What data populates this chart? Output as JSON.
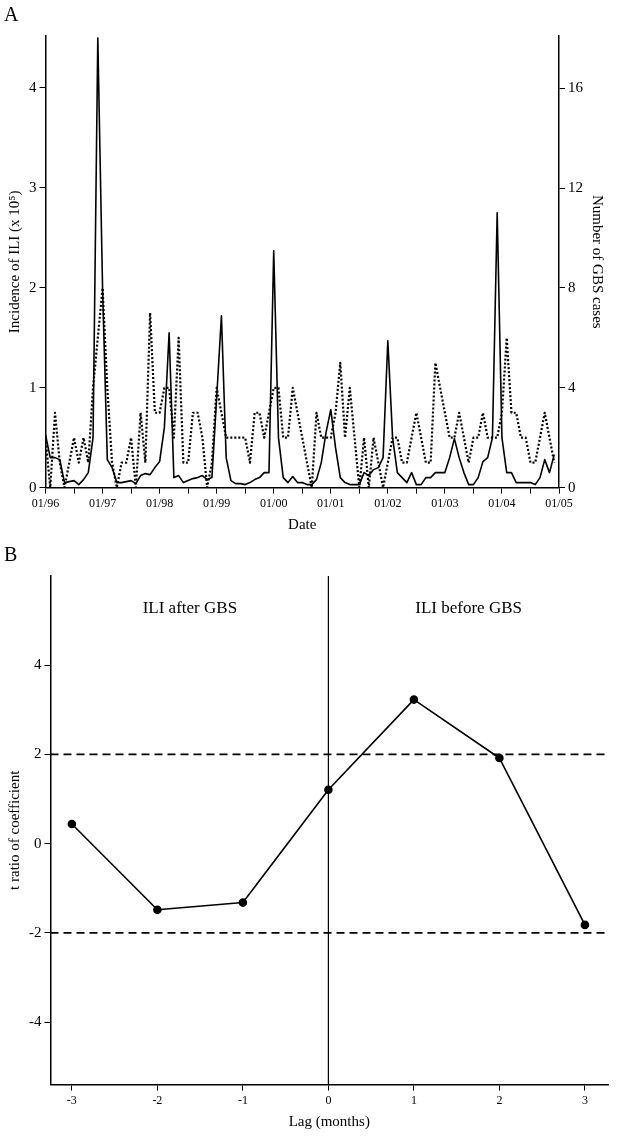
{
  "chart_data": [
    {
      "type": "line",
      "title": "A",
      "xlabel": "Date",
      "ylabel": "Incidence of ILI (x 10⁵)",
      "y2label": "Number of GBS cases",
      "x": [
        "1996-01",
        "1996-02",
        "1996-03",
        "1996-04",
        "1996-05",
        "1996-06",
        "1996-07",
        "1996-08",
        "1996-09",
        "1996-10",
        "1996-11",
        "1996-12",
        "1997-01",
        "1997-02",
        "1997-03",
        "1997-04",
        "1997-05",
        "1997-06",
        "1997-07",
        "1997-08",
        "1997-09",
        "1997-10",
        "1997-11",
        "1997-12",
        "1998-01",
        "1998-02",
        "1998-03",
        "1998-04",
        "1998-05",
        "1998-06",
        "1998-07",
        "1998-08",
        "1998-09",
        "1998-10",
        "1998-11",
        "1998-12",
        "1999-01",
        "1999-02",
        "1999-03",
        "1999-04",
        "1999-05",
        "1999-06",
        "1999-07",
        "1999-08",
        "1999-09",
        "1999-10",
        "1999-11",
        "1999-12",
        "2000-01",
        "2000-02",
        "2000-03",
        "2000-04",
        "2000-05",
        "2000-06",
        "2000-07",
        "2000-08",
        "2000-09",
        "2000-10",
        "2000-11",
        "2000-12",
        "2001-01",
        "2001-02",
        "2001-03",
        "2001-04",
        "2001-05",
        "2001-06",
        "2001-07",
        "2001-08",
        "2001-09",
        "2001-10",
        "2001-11",
        "2001-12",
        "2002-01",
        "2002-02",
        "2002-03",
        "2002-04",
        "2002-05",
        "2002-06",
        "2002-07",
        "2002-08",
        "2002-09",
        "2002-10",
        "2002-11",
        "2002-12",
        "2003-01",
        "2003-02",
        "2003-03",
        "2003-04",
        "2003-05",
        "2003-06",
        "2003-07",
        "2003-08",
        "2003-09",
        "2003-10",
        "2003-11",
        "2003-12",
        "2004-01",
        "2004-02",
        "2004-03",
        "2004-04",
        "2004-05",
        "2004-06",
        "2004-07",
        "2004-08",
        "2004-09",
        "2004-10",
        "2004-11",
        "2004-12"
      ],
      "series": [
        {
          "color": "#000000",
          "line_style": "solid",
          "values": [
            0.53,
            0.3,
            0.3,
            0.28,
            0.05,
            0.06,
            0.07,
            0.03,
            0.08,
            0.15,
            0.5,
            4.5,
            2.0,
            0.28,
            0.2,
            0.05,
            0.05,
            0.06,
            0.07,
            0.04,
            0.12,
            0.14,
            0.13,
            0.2,
            0.26,
            0.6,
            1.55,
            0.1,
            0.12,
            0.05,
            0.07,
            0.09,
            0.1,
            0.12,
            0.08,
            0.1,
            0.9,
            1.72,
            0.3,
            0.07,
            0.04,
            0.04,
            0.03,
            0.05,
            0.08,
            0.1,
            0.15,
            0.15,
            2.37,
            0.5,
            0.1,
            0.05,
            0.11,
            0.05,
            0.05,
            0.03,
            0.03,
            0.08,
            0.25,
            0.55,
            0.78,
            0.4,
            0.1,
            0.05,
            0.03,
            0.03,
            0.03,
            0.15,
            0.12,
            0.18,
            0.2,
            0.3,
            1.47,
            0.5,
            0.15,
            0.1,
            0.05,
            0.15,
            0.03,
            0.03,
            0.1,
            0.1,
            0.15,
            0.15,
            0.15,
            0.3,
            0.49,
            0.3,
            0.15,
            0.03,
            0.03,
            0.1,
            0.26,
            0.3,
            0.5,
            2.75,
            0.5,
            0.15,
            0.15,
            0.05,
            0.05,
            0.05,
            0.05,
            0.03,
            0.1,
            0.28,
            0.15,
            0.33
          ]
        },
        {
          "color": "#000000",
          "line_style": "dotted",
          "axis": "y2",
          "values": [
            2,
            0,
            3,
            1,
            0,
            1,
            2,
            1,
            2,
            1,
            4,
            6,
            8,
            4,
            1,
            0,
            1,
            1,
            2,
            0,
            3,
            1,
            7,
            3,
            3,
            4,
            4,
            2,
            6,
            1,
            1,
            3,
            3,
            2,
            0,
            1,
            4,
            3,
            2,
            2,
            2,
            2,
            2,
            1,
            3,
            3,
            2,
            3,
            4,
            4,
            2,
            2,
            4,
            3,
            2,
            1,
            0,
            3,
            2,
            2,
            2,
            3,
            5,
            2,
            4,
            2,
            0,
            2,
            0,
            2,
            1,
            0,
            1,
            2,
            2,
            1,
            1,
            2,
            3,
            2,
            1,
            1,
            5,
            4,
            3,
            2,
            2,
            3,
            2,
            1,
            2,
            2,
            3,
            2,
            2,
            2,
            3,
            6,
            3,
            3,
            2,
            2,
            1,
            1,
            2,
            3,
            2,
            1
          ]
        }
      ],
      "xlim": [
        "1996-01",
        "2005-01"
      ],
      "xticks": [
        {
          "value": "1996-01",
          "label": "01/96"
        },
        {
          "value": "1996-07",
          "label": null
        },
        {
          "value": "1997-01",
          "label": "01/97"
        },
        {
          "value": "1997-07",
          "label": null
        },
        {
          "value": "1998-01",
          "label": "01/98"
        },
        {
          "value": "1998-07",
          "label": null
        },
        {
          "value": "1999-01",
          "label": "01/99"
        },
        {
          "value": "1999-07",
          "label": null
        },
        {
          "value": "2000-01",
          "label": "01/00"
        },
        {
          "value": "2000-07",
          "label": null
        },
        {
          "value": "2001-01",
          "label": "01/01"
        },
        {
          "value": "2001-07",
          "label": null
        },
        {
          "value": "2002-01",
          "label": "01/02"
        },
        {
          "value": "2002-07",
          "label": null
        },
        {
          "value": "2003-01",
          "label": "01/03"
        },
        {
          "value": "2003-07",
          "label": null
        },
        {
          "value": "2004-01",
          "label": "01/04"
        },
        {
          "value": "2004-07",
          "label": null
        },
        {
          "value": "2005-01",
          "label": "01/05"
        }
      ],
      "ylim": [
        0,
        4.52
      ],
      "yticks": [
        0,
        1,
        2,
        3,
        4
      ],
      "y2lim": [
        0,
        18.1
      ],
      "y2ticks": [
        0,
        4,
        8,
        12,
        16
      ],
      "marker": "none",
      "legend": false
    },
    {
      "type": "line",
      "title": "B",
      "xlabel": "Lag (months)",
      "ylabel": "t ratio of coefficient",
      "x": [
        -3,
        -2,
        -1,
        0,
        1,
        2,
        3
      ],
      "series": [
        {
          "color": "#000000",
          "values": [
            0.44,
            -1.48,
            -1.32,
            1.21,
            3.23,
            1.92,
            -1.82
          ]
        }
      ],
      "xlim": [
        -3.25,
        3.27
      ],
      "xticks": [
        -3,
        -2,
        -1,
        0,
        1,
        2,
        3
      ],
      "ylim": [
        -5.4,
        6
      ],
      "yticks": [
        -4,
        -2,
        0,
        2,
        4
      ],
      "ref_lines": [
        {
          "axis": "x",
          "value": 0,
          "line_style": "solid"
        },
        {
          "axis": "y",
          "value": 2,
          "line_style": "dashed"
        },
        {
          "axis": "y",
          "value": -2,
          "line_style": "dashed"
        }
      ],
      "annotations": [
        "ILI after GBS",
        "ILI before GBS"
      ],
      "marker": "circle",
      "line_style": "solid",
      "legend": false
    }
  ]
}
